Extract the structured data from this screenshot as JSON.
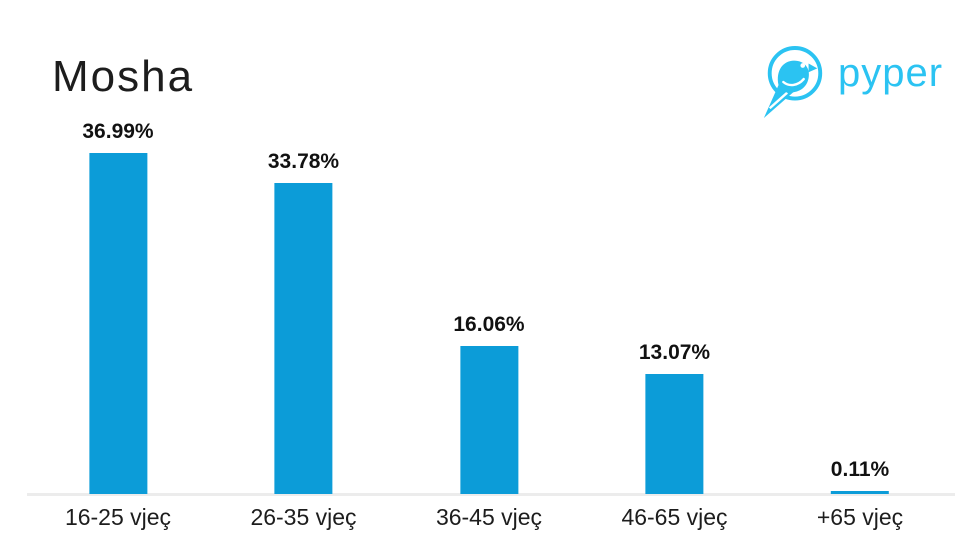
{
  "title": "Mosha",
  "logo": {
    "text": "pyper",
    "icon": "bird-in-circle-icon",
    "color": "#2bc3f2"
  },
  "colors": {
    "bar": "#0c9cd8",
    "axis_line": "#ececec",
    "text": "#1d1d1d"
  },
  "chart_data": {
    "type": "bar",
    "title": "Mosha",
    "categories": [
      "16-25 vjeç",
      "26-35 vjeç",
      "36-45 vjeç",
      "46-65 vjeç",
      "+65 vjeç"
    ],
    "values": [
      36.99,
      33.78,
      16.06,
      13.07,
      0.11
    ],
    "value_labels": [
      "36.99%",
      "33.78%",
      "16.06%",
      "13.07%",
      "0.11%"
    ],
    "xlabel": "",
    "ylabel": "",
    "ylim": [
      0,
      40
    ],
    "grid": false,
    "legend": false,
    "bar_color": "#0c9cd8"
  }
}
